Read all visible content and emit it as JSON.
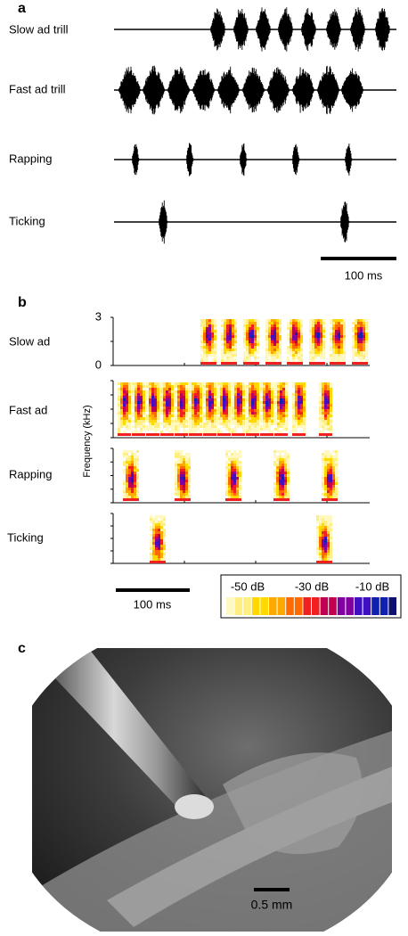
{
  "panel_a": {
    "label": "a",
    "rows": [
      "Slow ad trill",
      "Fast ad trill",
      "Rapping",
      "Ticking"
    ],
    "scale_bar": "100 ms"
  },
  "panel_b": {
    "label": "b",
    "rows": [
      "Slow ad",
      "Fast ad",
      "Rapping",
      "Ticking"
    ],
    "y_axis_label": "Frequency (kHz)",
    "yticks": [
      "3",
      "0"
    ],
    "scale_bar": "100 ms",
    "colorbar_labels": [
      "-50 dB",
      "-30 dB",
      "-10 dB"
    ]
  },
  "panel_c": {
    "label": "c",
    "scale_bar": "0.5 mm"
  }
}
